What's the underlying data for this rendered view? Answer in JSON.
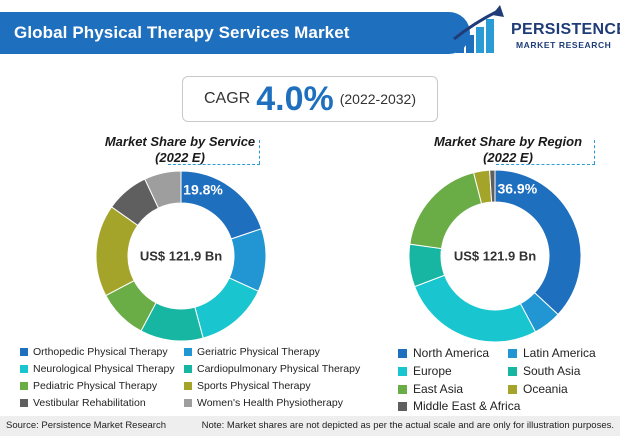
{
  "header": {
    "title": "Global Physical Therapy Services Market"
  },
  "logo": {
    "name": "PERSISTENCE",
    "subtitle": "MARKET RESEARCH"
  },
  "cagr": {
    "label": "CAGR",
    "value": "4.0%",
    "period": "(2022-2032)"
  },
  "colors": {
    "header_blue": "#1f6fbf",
    "accent_dash": "#2b9bd6"
  },
  "chart_data": [
    {
      "type": "pie",
      "subtype": "donut",
      "title": "Market Share by Service",
      "subtitle": "(2022 E)",
      "center_label": "US$ 121.9 Bn",
      "highlight_label": "19.8%",
      "slices": [
        {
          "name": "Orthopedic Physical Therapy",
          "value": 19.8,
          "color": "#1f6fbf"
        },
        {
          "name": "Geriatric Physical Therapy",
          "value": 12.0,
          "color": "#2196d3"
        },
        {
          "name": "Neurological Physical Therapy",
          "value": 14.0,
          "color": "#19c6cf"
        },
        {
          "name": "Cardiopulmonary Physical Therapy",
          "value": 12.0,
          "color": "#17b6a2"
        },
        {
          "name": "Pediatric Physical Therapy",
          "value": 9.5,
          "color": "#6aad46"
        },
        {
          "name": "Sports Physical Therapy",
          "value": 17.5,
          "color": "#a3a429"
        },
        {
          "name": "Vestibular Rehabilitation",
          "value": 8.2,
          "color": "#5f5f5f"
        },
        {
          "name": "Women's Health Physiotherapy",
          "value": 7.0,
          "color": "#9e9e9e"
        }
      ]
    },
    {
      "type": "pie",
      "subtype": "donut",
      "title": "Market Share by Region",
      "subtitle": "(2022 E)",
      "center_label": "US$ 121.9 Bn",
      "highlight_label": "36.9%",
      "slices": [
        {
          "name": "North America",
          "value": 36.9,
          "color": "#1f6fbf"
        },
        {
          "name": "Latin America",
          "value": 5.3,
          "color": "#2196d3"
        },
        {
          "name": "Europe",
          "value": 27.0,
          "color": "#19c6cf"
        },
        {
          "name": "South Asia",
          "value": 8.0,
          "color": "#17b6a2"
        },
        {
          "name": "East Asia",
          "value": 18.8,
          "color": "#6aad46"
        },
        {
          "name": "Oceania",
          "value": 3.0,
          "color": "#a3a429"
        },
        {
          "name": "Middle East & Africa",
          "value": 1.0,
          "color": "#5f5f5f"
        }
      ]
    }
  ],
  "footer": {
    "source": "Source: Persistence Market Research",
    "note": "Note: Market shares are not depicted as per the actual scale and are only for illustration purposes."
  }
}
